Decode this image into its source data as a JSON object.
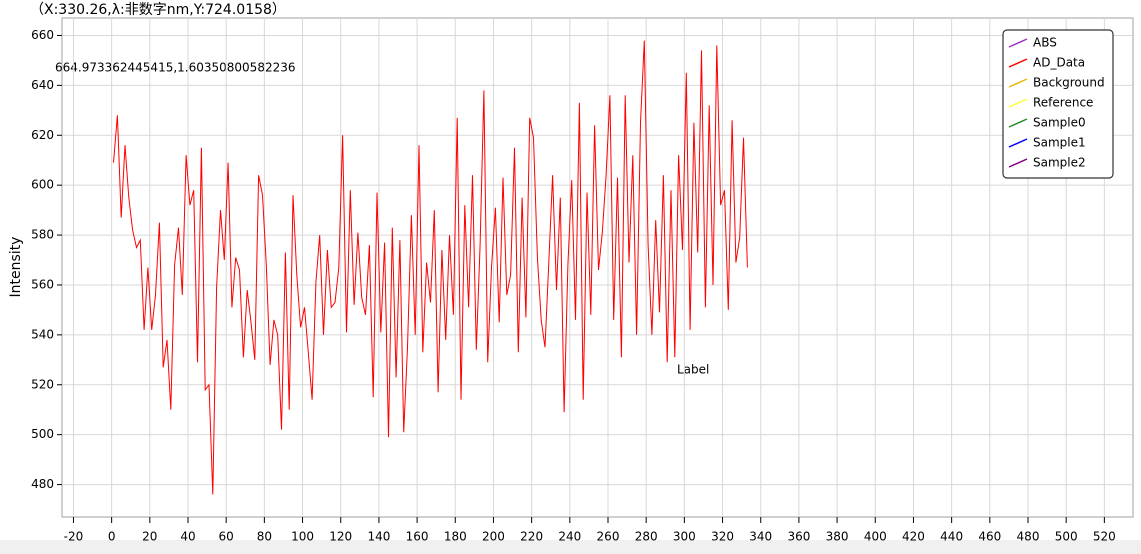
{
  "chart_data": {
    "type": "line",
    "annotations": [
      "（X:330.26,λ:非数字nm,Y:724.0158）",
      "664.973362445415,1.60350800582236",
      "Label"
    ],
    "y_label": "Intensity",
    "xlim": [
      -26,
      535
    ],
    "ylim": [
      467,
      667
    ],
    "xticks": [
      -20,
      0,
      20,
      40,
      60,
      80,
      100,
      120,
      140,
      160,
      180,
      200,
      220,
      240,
      260,
      280,
      300,
      320,
      340,
      360,
      380,
      400,
      420,
      440,
      460,
      480,
      500,
      520
    ],
    "yticks": [
      480,
      500,
      520,
      540,
      560,
      580,
      600,
      620,
      640,
      660
    ],
    "grid": true,
    "legend": "top-right",
    "series": [
      {
        "name": "ABS",
        "color": "#9b30c0",
        "x": [],
        "values": []
      },
      {
        "name": "AD_Data",
        "color": "#ff0000",
        "x": [
          1,
          3,
          5,
          7,
          9,
          11,
          13,
          15,
          17,
          19,
          21,
          23,
          25,
          27,
          29,
          31,
          33,
          35,
          37,
          39,
          41,
          43,
          45,
          47,
          49,
          51,
          53,
          55,
          57,
          59,
          61,
          63,
          65,
          67,
          69,
          71,
          73,
          75,
          77,
          79,
          81,
          83,
          85,
          87,
          89,
          91,
          93,
          95,
          97,
          99,
          101,
          103,
          105,
          107,
          109,
          111,
          113,
          115,
          117,
          119,
          121,
          123,
          125,
          127,
          129,
          131,
          133,
          135,
          137,
          139,
          141,
          143,
          145,
          147,
          149,
          151,
          153,
          155,
          157,
          159,
          161,
          163,
          165,
          167,
          169,
          171,
          173,
          175,
          177,
          179,
          181,
          183,
          185,
          187,
          189,
          191,
          193,
          195,
          197,
          199,
          201,
          203,
          205,
          207,
          209,
          211,
          213,
          215,
          217,
          219,
          221,
          223,
          225,
          227,
          229,
          231,
          233,
          235,
          237,
          239,
          241,
          243,
          245,
          247,
          249,
          251,
          253,
          255,
          257,
          259,
          261,
          263,
          265,
          267,
          269,
          271,
          273,
          275,
          277,
          279,
          281,
          283,
          285,
          287,
          289,
          291,
          293,
          295,
          297,
          299,
          301,
          303,
          305,
          307,
          309,
          311,
          313,
          315,
          317,
          319,
          321,
          323,
          325,
          327,
          329,
          331,
          333
        ],
        "values": [
          609,
          628,
          587,
          616,
          595,
          582,
          575,
          578,
          542,
          567,
          542,
          556,
          585,
          527,
          538,
          510,
          568,
          583,
          556,
          612,
          592,
          598,
          529,
          615,
          518,
          520,
          476,
          559,
          590,
          570,
          609,
          551,
          571,
          566,
          531,
          558,
          545,
          530,
          604,
          596,
          568,
          528,
          546,
          540,
          502,
          573,
          510,
          596,
          564,
          543,
          551,
          533,
          514,
          561,
          580,
          540,
          574,
          551,
          553,
          567,
          620,
          541,
          598,
          552,
          581,
          555,
          548,
          576,
          515,
          597,
          541,
          577,
          499,
          583,
          523,
          578,
          501,
          535,
          588,
          540,
          616,
          533,
          569,
          553,
          590,
          517,
          574,
          538,
          580,
          548,
          627,
          514,
          592,
          551,
          604,
          534,
          576,
          638,
          529,
          567,
          591,
          545,
          603,
          556,
          564,
          615,
          533,
          595,
          547,
          627,
          619,
          571,
          546,
          535,
          569,
          604,
          558,
          595,
          509,
          568,
          602,
          546,
          633,
          514,
          597,
          548,
          624,
          566,
          581,
          604,
          636,
          546,
          603,
          531,
          636,
          569,
          612,
          540,
          625,
          658,
          576,
          540,
          586,
          549,
          604,
          529,
          598,
          531,
          612,
          574,
          645,
          542,
          625,
          573,
          654,
          551,
          632,
          560,
          656,
          592,
          598,
          550,
          626,
          569,
          579,
          619,
          567
        ]
      },
      {
        "name": "Background",
        "color": "#e6b800",
        "x": [],
        "values": []
      },
      {
        "name": "Reference",
        "color": "#ffff33",
        "x": [],
        "values": []
      },
      {
        "name": "Sample0",
        "color": "#228b22",
        "x": [],
        "values": []
      },
      {
        "name": "Sample1",
        "color": "#0000ff",
        "x": [],
        "values": []
      },
      {
        "name": "Sample2",
        "color": "#800080",
        "x": [],
        "values": []
      }
    ]
  }
}
